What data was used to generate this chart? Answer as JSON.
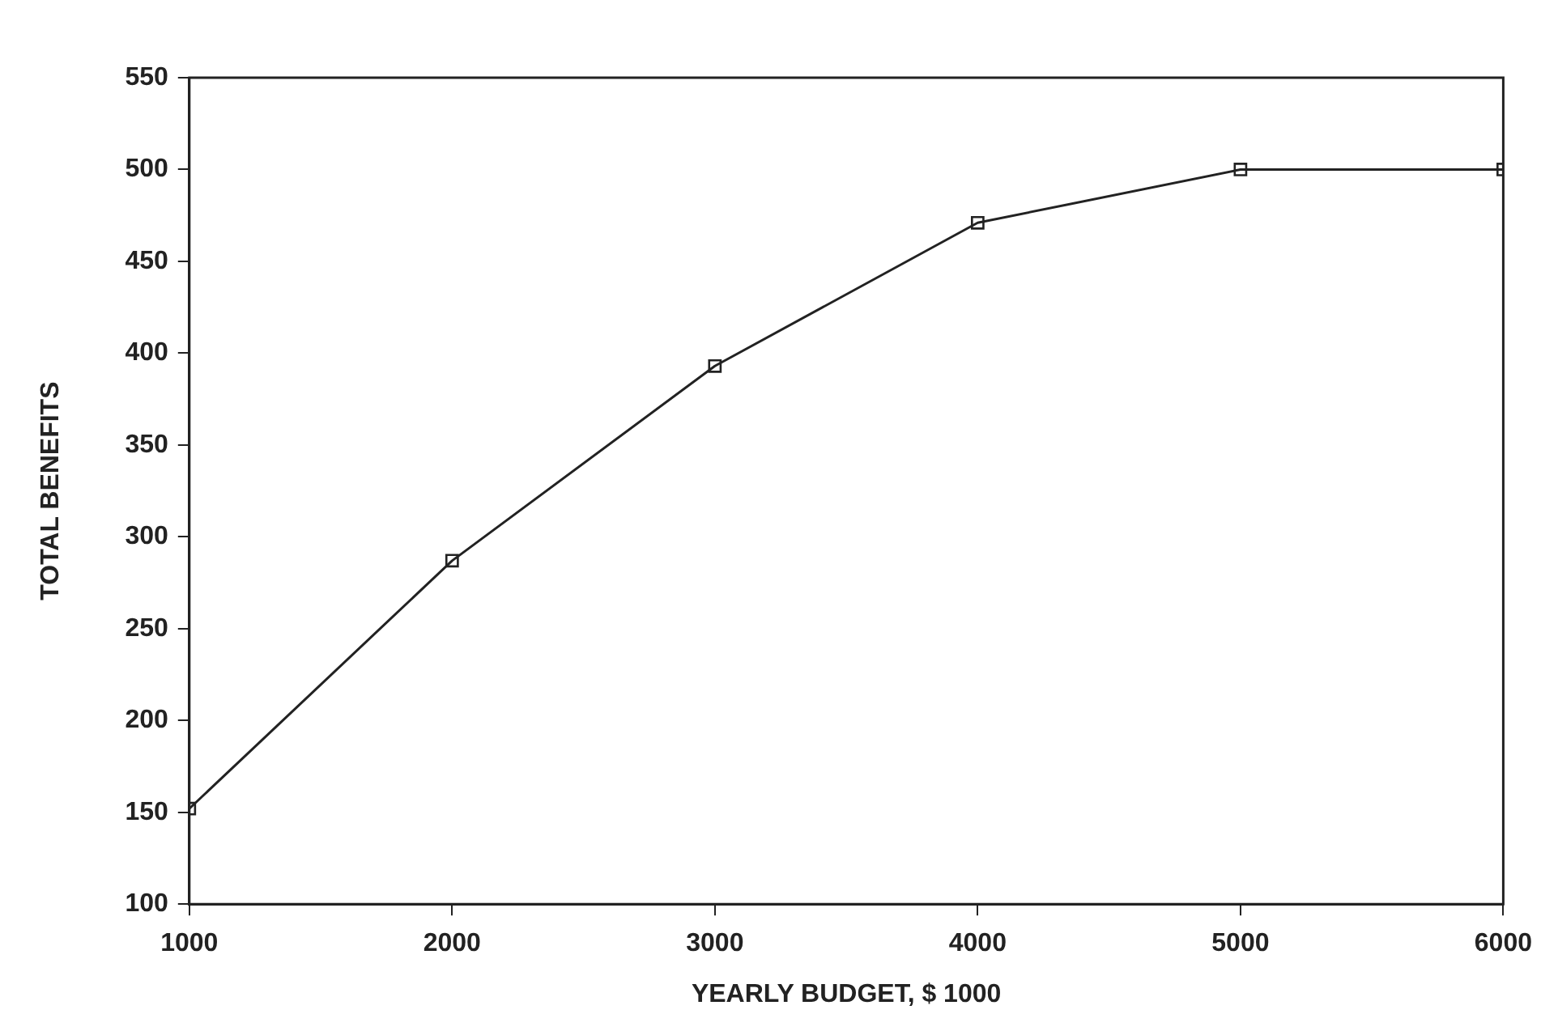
{
  "chart_data": {
    "type": "line",
    "xlabel": "YEARLY BUDGET, $ 1000",
    "ylabel": "TOTAL BENEFITS",
    "x": [
      1000,
      2000,
      3000,
      4000,
      5000,
      6000
    ],
    "series": [
      {
        "color": "#222222",
        "values": [
          152,
          287,
          393,
          471,
          500,
          500
        ]
      }
    ],
    "xlim": [
      1000,
      6000
    ],
    "xticks": [
      1000,
      2000,
      3000,
      4000,
      5000,
      6000
    ],
    "ylim": [
      100,
      550
    ],
    "yticks": [
      100,
      150,
      200,
      250,
      300,
      350,
      400,
      450,
      500,
      550
    ],
    "grid": false,
    "legend": false,
    "marker": "square",
    "line_style": "solid"
  }
}
